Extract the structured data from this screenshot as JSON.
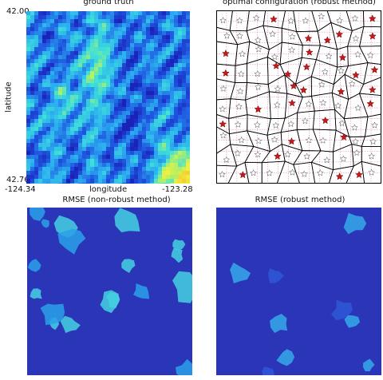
{
  "chart_data": [
    {
      "type": "heatmap",
      "title": "ground truth",
      "xlabel": "longitude",
      "ylabel": "latitude",
      "xlim": [
        -124.34,
        -123.28
      ],
      "ylim": [
        42.76,
        42.0
      ],
      "x_tick_labels": [
        "-124.34",
        "-123.28"
      ],
      "y_tick_labels": [
        "42.00",
        "42.76"
      ],
      "colormap": [
        "#1a22b8",
        "#1f55e0",
        "#2bb0f0",
        "#3fe0d8",
        "#b8f060",
        "#f0f040",
        "#f8a020",
        "#e03010",
        "#b01010"
      ]
    },
    {
      "type": "scatter",
      "title": "optimal configuration (robust method)",
      "marker_filled_color": "#c41a1a",
      "marker_open_color": "#ffffff",
      "grid_color": "#c04090",
      "cell_edge_color": "#000000"
    },
    {
      "type": "heatmap",
      "title": "RMSE (non-robust method)",
      "background_color": "#2a35b8",
      "blob_colors": [
        "#2aa0e8",
        "#45d0e0"
      ]
    },
    {
      "type": "heatmap",
      "title": "RMSE (robust method)",
      "background_color": "#2a35b8",
      "blob_colors": [
        "#2e58d8",
        "#35a8e8"
      ]
    }
  ]
}
